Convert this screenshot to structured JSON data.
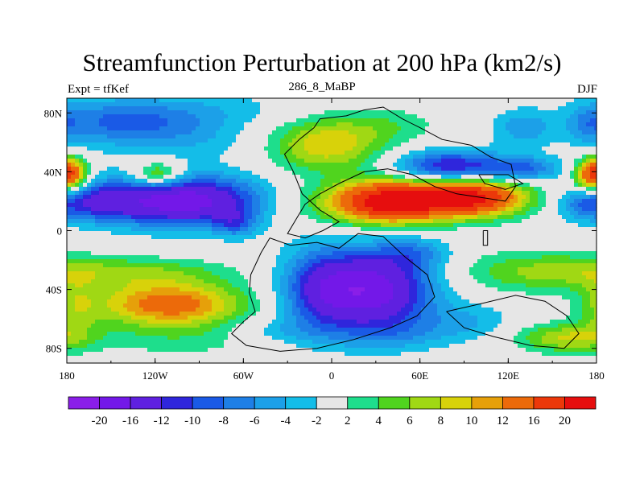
{
  "chart_data": {
    "type": "heatmap",
    "title": "Streamfunction Perturbation at 200 hPa (km2/s)",
    "subtitle_left": "Expt = tfKef",
    "subtitle_center": "286_8_MaBP",
    "subtitle_right": "DJF",
    "x_ticks": [
      "180",
      "120W",
      "60W",
      "0",
      "60E",
      "120E",
      "180"
    ],
    "x_tick_values": [
      -180,
      -120,
      -60,
      0,
      60,
      120,
      180
    ],
    "y_ticks": [
      "80N",
      "40N",
      "0",
      "40S",
      "80S"
    ],
    "y_tick_values": [
      80,
      40,
      0,
      -40,
      -80
    ],
    "xlim": [
      -180,
      180
    ],
    "ylim": [
      -90,
      90
    ],
    "colorbar": {
      "labels": [
        "-20",
        "-16",
        "-12",
        "-10",
        "-8",
        "-6",
        "-4",
        "-2",
        "2",
        "4",
        "6",
        "8",
        "10",
        "12",
        "16",
        "20"
      ],
      "levels": [
        -20,
        -16,
        -12,
        -10,
        -8,
        -6,
        -4,
        -2,
        2,
        4,
        6,
        8,
        10,
        12,
        16,
        20
      ],
      "colors": [
        "#8a1ee8",
        "#7318e8",
        "#5f20e0",
        "#2f26dc",
        "#1a5ae6",
        "#1e7fe6",
        "#1ca0e8",
        "#14bde8",
        "#e6e6e6",
        "#1ede8c",
        "#50d41e",
        "#a0d814",
        "#d8d20a",
        "#e6a00a",
        "#ec6a0a",
        "#ec380a",
        "#e60e0e"
      ]
    },
    "features": [
      {
        "lon": -100,
        "lat": 72,
        "sx": 55,
        "sy": 14,
        "v": -6.5
      },
      {
        "lon": -150,
        "lat": 75,
        "sx": 30,
        "sy": 10,
        "v": -4.5
      },
      {
        "lon": -60,
        "lat": 70,
        "sx": 25,
        "sy": 8,
        "v": 2
      },
      {
        "lon": -5,
        "lat": 59,
        "sx": 28,
        "sy": 13,
        "v": 10.5
      },
      {
        "lon": 40,
        "lat": 72,
        "sx": 25,
        "sy": 9,
        "v": 3
      },
      {
        "lon": -118,
        "lat": 38,
        "sx": 12,
        "sy": 6,
        "v": 10
      },
      {
        "lon": -178,
        "lat": 38,
        "sx": 9,
        "sy": 8,
        "v": 9
      },
      {
        "lon": 178,
        "lat": 38,
        "sx": 9,
        "sy": 8,
        "v": 12.5
      },
      {
        "lon": -100,
        "lat": 20,
        "sx": 40,
        "sy": 12,
        "v": -19
      },
      {
        "lon": -160,
        "lat": 20,
        "sx": 18,
        "sy": 9,
        "v": -8
      },
      {
        "lon": 170,
        "lat": 18,
        "sx": 12,
        "sy": 8,
        "v": -6
      },
      {
        "lon": 80,
        "lat": 43,
        "sx": 26,
        "sy": 8,
        "v": -13
      },
      {
        "lon": 130,
        "lat": 42,
        "sx": 18,
        "sy": 6,
        "v": -8
      },
      {
        "lon": 130,
        "lat": 70,
        "sx": 15,
        "sy": 9,
        "v": -5
      },
      {
        "lon": 175,
        "lat": 72,
        "sx": 10,
        "sy": 10,
        "v": -4
      },
      {
        "lon": 40,
        "lat": 20,
        "sx": 26,
        "sy": 10,
        "v": 19
      },
      {
        "lon": 95,
        "lat": 23,
        "sx": 26,
        "sy": 9,
        "v": 20
      },
      {
        "lon": 15,
        "lat": 18,
        "sx": 55,
        "sy": 11,
        "v": 5
      },
      {
        "lon": -65,
        "lat": 5,
        "sx": 10,
        "sy": 7,
        "v": -6
      },
      {
        "lon": 25,
        "lat": -40,
        "sx": 30,
        "sy": 18,
        "v": -19
      },
      {
        "lon": -10,
        "lat": -40,
        "sx": 18,
        "sy": 22,
        "v": -6
      },
      {
        "lon": 40,
        "lat": -70,
        "sx": 30,
        "sy": 9,
        "v": -4
      },
      {
        "lon": -110,
        "lat": -50,
        "sx": 36,
        "sy": 11,
        "v": 14
      },
      {
        "lon": -135,
        "lat": -28,
        "sx": 45,
        "sy": 7,
        "v": 5
      },
      {
        "lon": -100,
        "lat": -75,
        "sx": 45,
        "sy": 9,
        "v": 2.5
      },
      {
        "lon": -175,
        "lat": -52,
        "sx": 12,
        "sy": 14,
        "v": 5
      },
      {
        "lon": 142,
        "lat": -28,
        "sx": 42,
        "sy": 10,
        "v": 6
      },
      {
        "lon": 160,
        "lat": -73,
        "sx": 25,
        "sy": 7,
        "v": 8
      },
      {
        "lon": 95,
        "lat": -62,
        "sx": 22,
        "sy": 9,
        "v": -3.5
      },
      {
        "lon": 55,
        "lat": -15,
        "sx": 18,
        "sy": 8,
        "v": -5
      },
      {
        "lon": -40,
        "lat": -68,
        "sx": 22,
        "sy": 7,
        "v": -3
      }
    ]
  }
}
